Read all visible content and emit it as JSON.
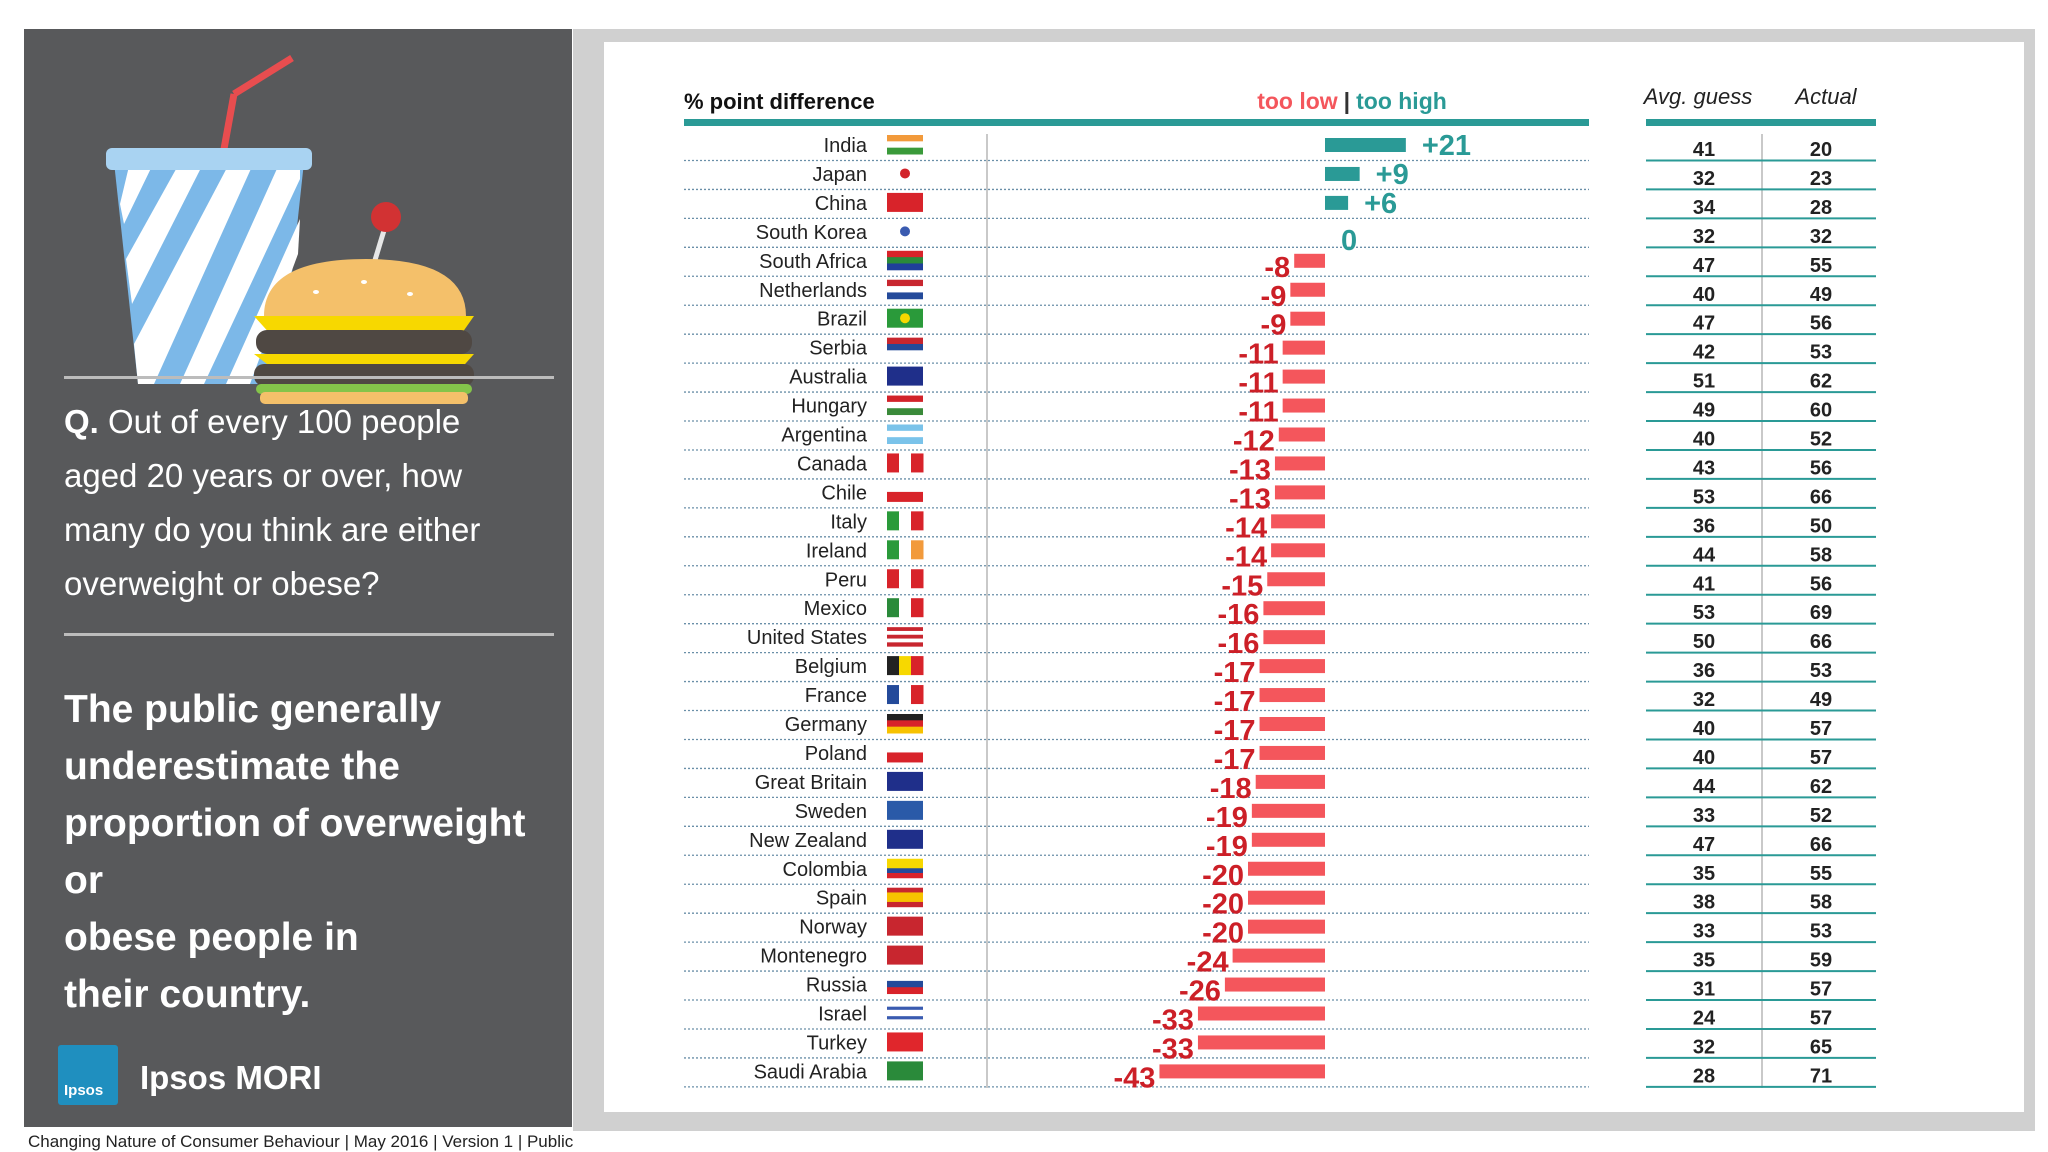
{
  "question": {
    "prefix": "Q.",
    "text": "Out of every 100 people aged 20 years or over, how many do you think are either overweight or obese?"
  },
  "finding": {
    "lines": [
      "The public generally",
      "underestimate the",
      "proportion of overweight",
      "or",
      "obese people in",
      "their country."
    ]
  },
  "brand": {
    "logo_text": "Ipsos",
    "name": "Ipsos MORI"
  },
  "footer": "Changing Nature of Consumer Behaviour |  May 2016 |  Version 1  |  Public",
  "colors": {
    "too_low": "#f4565c",
    "too_high": "#2a9a96",
    "low_label": "#cc1f27",
    "high_label": "#2a9a96",
    "panel": "#58595b"
  },
  "chart_data": {
    "type": "bar",
    "title": "% point difference",
    "legend": {
      "too_low": "too low",
      "separator": "|",
      "too_high": "too high"
    },
    "table_headers": {
      "avg_guess": "Avg. guess",
      "actual": "Actual"
    },
    "categories": [
      "India",
      "Japan",
      "China",
      "South Korea",
      "South Africa",
      "Netherlands",
      "Brazil",
      "Serbia",
      "Australia",
      "Hungary",
      "Argentina",
      "Canada",
      "Chile",
      "Italy",
      "Ireland",
      "Peru",
      "Mexico",
      "United States",
      "Belgium",
      "France",
      "Germany",
      "Poland",
      "Great Britain",
      "Sweden",
      "New Zealand",
      "Colombia",
      "Spain",
      "Norway",
      "Montenegro",
      "Russia",
      "Israel",
      "Turkey",
      "Saudi Arabia"
    ],
    "values": [
      21,
      9,
      6,
      0,
      -8,
      -9,
      -9,
      -11,
      -11,
      -11,
      -12,
      -13,
      -13,
      -14,
      -14,
      -15,
      -16,
      -16,
      -17,
      -17,
      -17,
      -17,
      -18,
      -19,
      -19,
      -20,
      -20,
      -20,
      -24,
      -26,
      -33,
      -33,
      -43
    ],
    "value_labels": [
      "+21",
      "+9",
      "+6",
      "0",
      "-8",
      "-9",
      "-9",
      "-11",
      "-11",
      "-11",
      "-12",
      "-13",
      "-13",
      "-14",
      "-14",
      "-15",
      "-16",
      "-16",
      "-17",
      "-17",
      "-17",
      "-17",
      "-18",
      "-19",
      "-19",
      "-20",
      "-20",
      "-20",
      "-24",
      "-26",
      "-33",
      "-33",
      "-43"
    ],
    "avg_guess": [
      41,
      32,
      34,
      32,
      47,
      40,
      47,
      42,
      51,
      49,
      40,
      43,
      53,
      36,
      44,
      41,
      53,
      50,
      36,
      32,
      40,
      40,
      44,
      33,
      47,
      35,
      38,
      33,
      35,
      31,
      24,
      32,
      28
    ],
    "actual": [
      20,
      23,
      28,
      32,
      55,
      49,
      56,
      53,
      62,
      60,
      52,
      56,
      66,
      50,
      58,
      56,
      69,
      66,
      53,
      49,
      57,
      57,
      62,
      52,
      66,
      55,
      58,
      53,
      59,
      57,
      57,
      65,
      71
    ],
    "xlim": [
      -45,
      25
    ]
  }
}
